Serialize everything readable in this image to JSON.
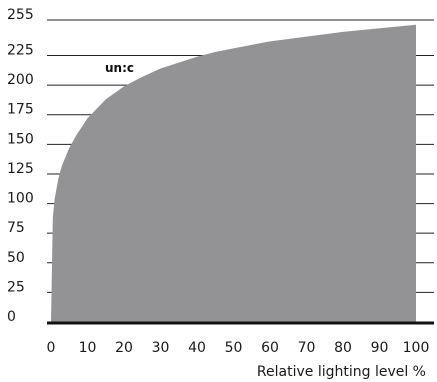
{
  "chart_data": {
    "type": "area",
    "title": "",
    "xlabel": "Relative lighting level %",
    "ylabel": "",
    "xlim": [
      0,
      100
    ],
    "ylim": [
      0,
      255
    ],
    "x_ticks": [
      0,
      10,
      20,
      30,
      40,
      50,
      60,
      70,
      80,
      90,
      100
    ],
    "y_ticks": [
      0,
      25,
      50,
      75,
      100,
      125,
      150,
      175,
      200,
      225,
      255
    ],
    "grid": "horizontal",
    "legend": "none",
    "annotation": "un:c",
    "fill_color": "#939396",
    "gridline_color": "#222222",
    "series": [
      {
        "x": [
          0,
          0.5,
          1,
          2,
          3,
          5,
          7,
          10,
          15,
          20,
          25,
          30,
          35,
          40,
          45,
          50,
          60,
          70,
          80,
          90,
          100
        ],
        "values": [
          0,
          88,
          104,
          121,
          132,
          147,
          158,
          172,
          188,
          199,
          207,
          214,
          219,
          224,
          228,
          231,
          237,
          241,
          245,
          248,
          251
        ]
      }
    ]
  }
}
